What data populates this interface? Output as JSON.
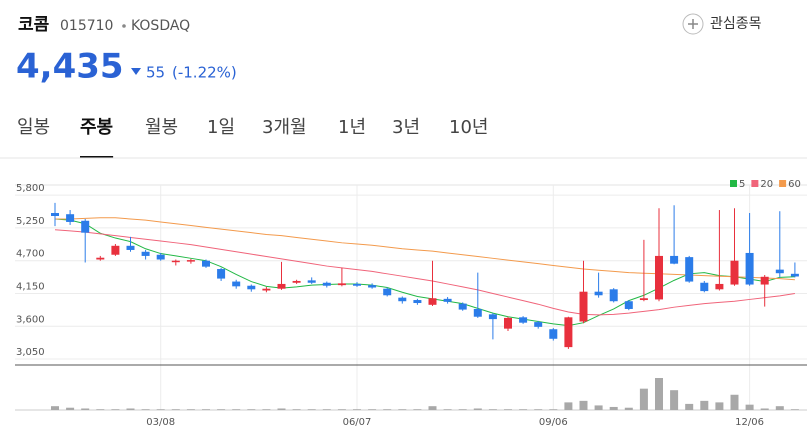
{
  "header": {
    "name": "코콤",
    "code": "015710",
    "market": "KOSDAQ",
    "watch": "관심종목",
    "price": "4,435",
    "change": "55",
    "change_pct": "(-1.22%)"
  },
  "tabs": [
    "일봉",
    "주봉",
    "월봉",
    "1일",
    "3개월",
    "1년",
    "3년",
    "10년"
  ],
  "selected_tab": 1,
  "chart_data": {
    "type": "candlestick",
    "categories": [
      null,
      null,
      null,
      null,
      null,
      null,
      null,
      "03/08",
      null,
      null,
      null,
      null,
      null,
      null,
      null,
      null,
      null,
      null,
      null,
      null,
      "06/07",
      null,
      null,
      null,
      null,
      null,
      null,
      null,
      null,
      null,
      null,
      null,
      null,
      "09/06",
      null,
      null,
      null,
      null,
      null,
      null,
      null,
      null,
      null,
      null,
      null,
      null,
      "12/06",
      null,
      null,
      null
    ],
    "open": [
      5500,
      5480,
      5370,
      4720,
      4800,
      4950,
      4850,
      4800,
      4680,
      4690,
      4700,
      4560,
      4350,
      4280,
      4200,
      4230,
      4330,
      4370,
      4330,
      4290,
      4310,
      4290,
      4230,
      4080,
      4040,
      3960,
      4060,
      3980,
      3890,
      3800,
      3560,
      3750,
      3670,
      3550,
      3250,
      3680,
      4180,
      4220,
      4020,
      4040,
      4050,
      4780,
      4760,
      4330,
      4220,
      4300,
      4830,
      4300,
      4550,
      4480
    ],
    "high": [
      5670,
      5550,
      5400,
      4780,
      4980,
      5100,
      4880,
      4830,
      4720,
      4730,
      4720,
      4580,
      4380,
      4300,
      4260,
      4680,
      4380,
      4420,
      4350,
      4580,
      4340,
      4320,
      4250,
      4100,
      4060,
      4700,
      4090,
      4000,
      4500,
      3820,
      3760,
      3770,
      3690,
      3570,
      3760,
      4700,
      4500,
      4240,
      4040,
      5050,
      5580,
      5630,
      4780,
      4360,
      5550,
      5580,
      5500,
      4460,
      5530,
      4670
    ],
    "low": [
      5280,
      5300,
      4670,
      4700,
      4780,
      4850,
      4720,
      4700,
      4620,
      4650,
      4580,
      4360,
      4230,
      4180,
      4170,
      4210,
      4310,
      4310,
      4250,
      4270,
      4260,
      4230,
      4100,
      3980,
      3960,
      3940,
      3980,
      3860,
      3740,
      3380,
      3520,
      3640,
      3560,
      3360,
      3220,
      3650,
      4080,
      4000,
      3870,
      4020,
      4020,
      4640,
      4330,
      4170,
      4200,
      4280,
      4280,
      3930,
      4420,
      4420
    ],
    "close": [
      5450,
      5350,
      5170,
      4750,
      4950,
      4880,
      4780,
      4720,
      4700,
      4710,
      4600,
      4400,
      4270,
      4220,
      4230,
      4310,
      4360,
      4330,
      4280,
      4320,
      4280,
      4250,
      4120,
      4020,
      3990,
      4070,
      4010,
      3880,
      3760,
      3720,
      3740,
      3660,
      3590,
      3390,
      3750,
      4180,
      4120,
      4020,
      3890,
      4070,
      4780,
      4650,
      4350,
      4190,
      4310,
      4700,
      4300,
      4430,
      4490,
      4435
    ],
    "volume": [
      5,
      3,
      2,
      1,
      1,
      2,
      1,
      1,
      1,
      1,
      1,
      1,
      1,
      1,
      1,
      2,
      1,
      1,
      1,
      1,
      1,
      1,
      1,
      1,
      1,
      5,
      1,
      1,
      2,
      1,
      1,
      1,
      1,
      1,
      10,
      12,
      6,
      4,
      3,
      28,
      42,
      26,
      8,
      12,
      10,
      20,
      7,
      2,
      5,
      1
    ],
    "up_color": "#e8303d",
    "down_color": "#2b7ce9",
    "volume_color": "#a8a8a8",
    "ma": [
      {
        "name": "5",
        "color": "#22b845",
        "values": [
          5400,
          5380,
          5320,
          5160,
          5080,
          5020,
          4900,
          4820,
          4780,
          4740,
          4700,
          4600,
          4470,
          4350,
          4270,
          4240,
          4260,
          4290,
          4300,
          4310,
          4310,
          4290,
          4250,
          4170,
          4100,
          4060,
          4020,
          3980,
          3900,
          3820,
          3760,
          3720,
          3680,
          3640,
          3610,
          3660,
          3780,
          3890,
          4030,
          4120,
          4240,
          4370,
          4480,
          4500,
          4450,
          4430,
          4390,
          4350,
          4420,
          4430
        ]
      },
      {
        "name": "20",
        "color": "#f0647a",
        "values": [
          5220,
          5200,
          5180,
          5150,
          5120,
          5090,
          5060,
          5030,
          5000,
          4970,
          4930,
          4890,
          4850,
          4810,
          4770,
          4730,
          4690,
          4650,
          4610,
          4580,
          4550,
          4520,
          4480,
          4440,
          4400,
          4360,
          4310,
          4260,
          4210,
          4150,
          4090,
          4030,
          3970,
          3900,
          3840,
          3800,
          3790,
          3800,
          3820,
          3850,
          3880,
          3920,
          3950,
          3980,
          4000,
          4020,
          4050,
          4080,
          4110,
          4150
        ]
      },
      {
        "name": "60",
        "color": "#f39a4c",
        "values": [
          5400,
          5400,
          5410,
          5420,
          5420,
          5400,
          5380,
          5350,
          5320,
          5290,
          5260,
          5230,
          5200,
          5170,
          5140,
          5120,
          5090,
          5060,
          5030,
          5000,
          4980,
          4960,
          4930,
          4900,
          4880,
          4860,
          4830,
          4800,
          4770,
          4740,
          4710,
          4680,
          4650,
          4620,
          4590,
          4560,
          4540,
          4520,
          4500,
          4490,
          4480,
          4470,
          4460,
          4450,
          4440,
          4430,
          4420,
          4410,
          4400,
          4380
        ]
      }
    ],
    "ylim": [
      2950,
      5970
    ],
    "yticks": [
      {
        "value": 5800,
        "label": "5,800"
      },
      {
        "value": 5250,
        "label": "5,250"
      },
      {
        "value": 4700,
        "label": "4,700"
      },
      {
        "value": 4150,
        "label": "4,150"
      },
      {
        "value": 3600,
        "label": "3,600"
      },
      {
        "value": 3050,
        "label": "3,050"
      }
    ],
    "grid": true
  }
}
